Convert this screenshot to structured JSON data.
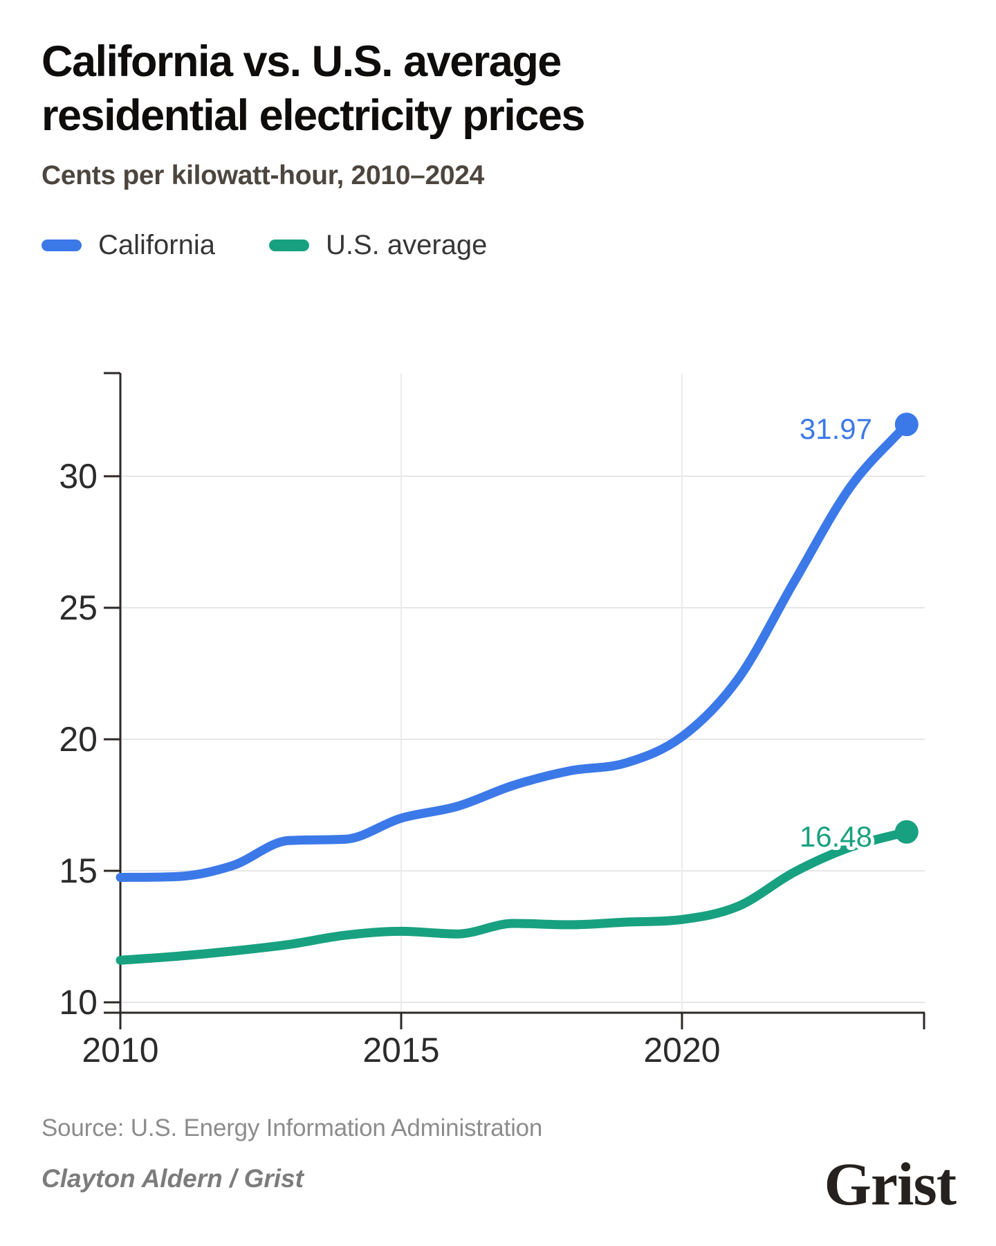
{
  "header": {
    "title": "California vs. U.S. average residential electricity prices",
    "subtitle": "Cents per kilowatt-hour, 2010–2024"
  },
  "legend": [
    {
      "label": "California",
      "color": "#3c79e8"
    },
    {
      "label": "U.S. average",
      "color": "#18a180"
    }
  ],
  "chart_data": {
    "type": "line",
    "x": [
      2010,
      2011,
      2012,
      2013,
      2014,
      2015,
      2016,
      2017,
      2018,
      2019,
      2020,
      2021,
      2022,
      2023,
      2024
    ],
    "series": [
      {
        "name": "California",
        "color": "#3c79e8",
        "values": [
          14.75,
          14.78,
          15.2,
          16.15,
          16.2,
          17.0,
          17.45,
          18.25,
          18.8,
          19.1,
          20.1,
          22.3,
          26.0,
          29.6,
          31.97
        ],
        "end_label": "31.97"
      },
      {
        "name": "U.S. average",
        "color": "#18a180",
        "values": [
          11.6,
          11.75,
          11.95,
          12.2,
          12.55,
          12.7,
          12.6,
          13.0,
          12.95,
          13.05,
          13.15,
          13.65,
          14.95,
          15.9,
          16.48
        ],
        "end_label": "16.48"
      }
    ],
    "xticks": [
      2010,
      2015,
      2020
    ],
    "yticks": [
      10,
      15,
      20,
      25,
      30
    ],
    "xlim": [
      2010,
      2024
    ],
    "ylim": [
      10,
      33.9
    ],
    "grid": true,
    "legend_position": "top"
  },
  "footer": {
    "source": "Source: U.S. Energy Information Administration",
    "byline": "Clayton Aldern / Grist",
    "logo": "Grist"
  }
}
